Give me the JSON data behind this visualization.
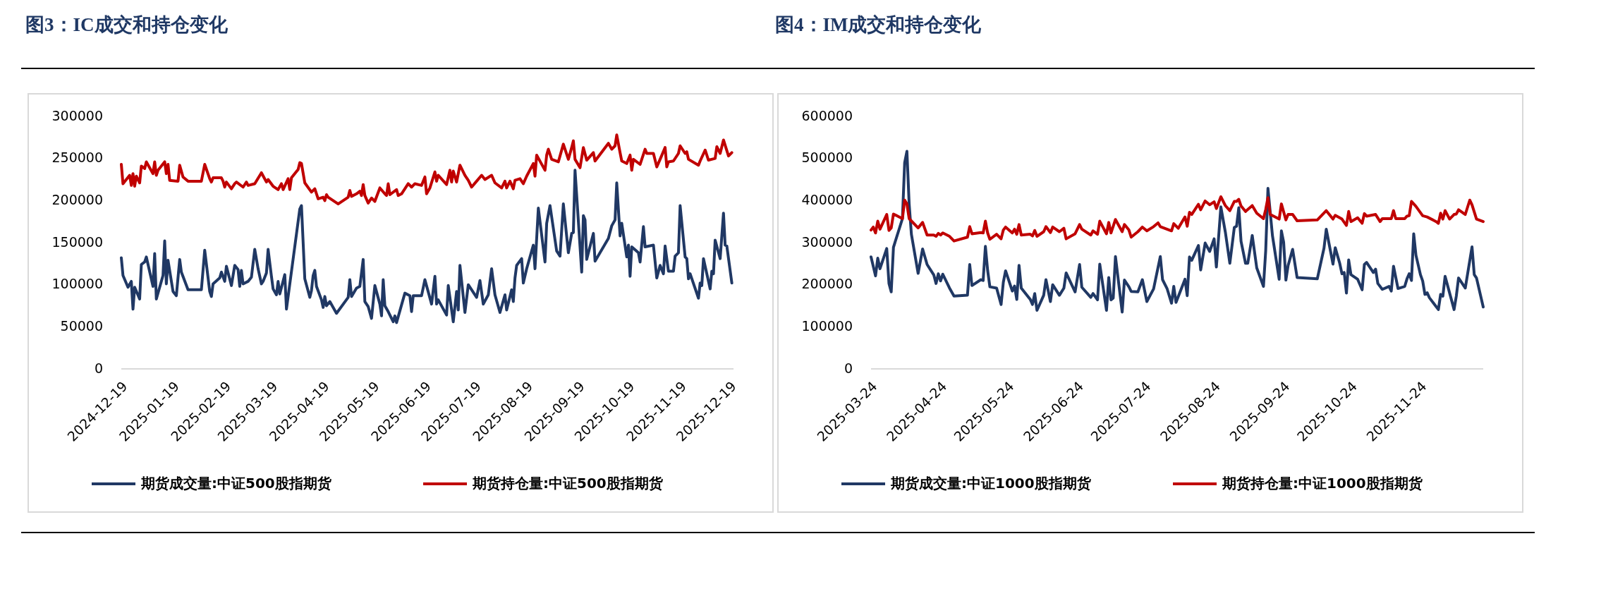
{
  "chart_data": [
    {
      "type": "line",
      "title": "图3：IC成交和持仓变化",
      "legend": "bottom",
      "ylim": [
        0,
        300000
      ],
      "yticks": [
        0,
        50000,
        100000,
        150000,
        200000,
        250000,
        300000
      ],
      "xlim": [
        "2024-12-19",
        "2025-12-21"
      ],
      "xticks": [
        "2024-12-19",
        "2025-01-19",
        "2025-02-19",
        "2025-03-19",
        "2025-04-19",
        "2025-05-19",
        "2025-06-19",
        "2025-07-19",
        "2025-08-19",
        "2025-09-19",
        "2025-10-19",
        "2025-11-19",
        "2025-12-19"
      ],
      "series": [
        {
          "name": "期货成交量:中证500股指期货",
          "color": "#203864",
          "x": [
            "2024-12-19",
            "2024-12-20",
            "2024-12-23",
            "2024-12-25",
            "2024-12-26",
            "2024-12-27",
            "2024-12-30",
            "2024-12-31",
            "2025-01-02",
            "2025-01-03",
            "2025-01-07",
            "2025-01-08",
            "2025-01-09",
            "2025-01-13",
            "2025-01-14",
            "2025-01-15",
            "2025-01-16",
            "2025-01-19",
            "2025-01-21",
            "2025-01-23",
            "2025-01-24",
            "2025-01-28",
            "2025-02-05",
            "2025-02-07",
            "2025-02-10",
            "2025-02-11",
            "2025-02-12",
            "2025-02-16",
            "2025-02-17",
            "2025-02-19",
            "2025-02-20",
            "2025-02-23",
            "2025-02-25",
            "2025-02-27",
            "2025-02-28",
            "2025-03-01",
            "2025-03-02",
            "2025-03-05",
            "2025-03-07",
            "2025-03-09",
            "2025-03-11",
            "2025-03-13",
            "2025-03-14",
            "2025-03-16",
            "2025-03-17",
            "2025-03-19",
            "2025-03-20",
            "2025-03-22",
            "2025-03-23",
            "2025-03-24",
            "2025-03-27",
            "2025-03-28",
            "2025-04-05",
            "2025-04-06",
            "2025-04-08",
            "2025-04-11",
            "2025-04-12",
            "2025-04-13",
            "2025-04-14",
            "2025-04-15",
            "2025-04-18",
            "2025-04-19",
            "2025-04-20",
            "2025-04-21",
            "2025-04-23",
            "2025-04-27",
            "2025-05-04",
            "2025-05-05",
            "2025-05-06",
            "2025-05-09",
            "2025-05-11",
            "2025-05-13",
            "2025-05-14",
            "2025-05-16",
            "2025-05-18",
            "2025-05-20",
            "2025-05-23",
            "2025-05-24",
            "2025-05-25",
            "2025-05-26",
            "2025-05-28",
            "2025-05-31",
            "2025-06-01",
            "2025-06-02",
            "2025-06-07",
            "2025-06-10",
            "2025-06-11",
            "2025-06-12",
            "2025-06-17",
            "2025-06-19",
            "2025-06-23",
            "2025-06-25",
            "2025-06-26",
            "2025-06-27",
            "2025-07-02",
            "2025-07-03",
            "2025-07-06",
            "2025-07-08",
            "2025-07-09",
            "2025-07-10",
            "2025-07-13",
            "2025-07-15",
            "2025-07-20",
            "2025-07-22",
            "2025-07-24",
            "2025-07-27",
            "2025-07-29",
            "2025-07-31",
            "2025-08-03",
            "2025-08-06",
            "2025-08-07",
            "2025-08-10",
            "2025-08-11",
            "2025-08-12",
            "2025-08-13",
            "2025-08-16",
            "2025-08-17",
            "2025-08-19",
            "2025-08-23",
            "2025-08-24",
            "2025-08-26",
            "2025-08-30",
            "2025-08-31",
            "2025-09-02",
            "2025-09-06",
            "2025-09-08",
            "2025-09-10",
            "2025-09-13",
            "2025-09-15",
            "2025-09-16",
            "2025-09-17",
            "2025-09-21",
            "2025-09-22",
            "2025-09-23",
            "2025-09-24",
            "2025-09-28",
            "2025-09-29",
            "2025-10-07",
            "2025-10-09",
            "2025-10-11",
            "2025-10-12",
            "2025-10-14",
            "2025-10-15",
            "2025-10-18",
            "2025-10-19",
            "2025-10-20",
            "2025-10-21",
            "2025-10-25",
            "2025-10-26",
            "2025-10-28",
            "2025-10-29",
            "2025-11-03",
            "2025-11-05",
            "2025-11-07",
            "2025-11-09",
            "2025-11-10",
            "2025-11-12",
            "2025-11-15",
            "2025-11-16",
            "2025-11-18",
            "2025-11-19",
            "2025-11-22",
            "2025-11-23",
            "2025-11-24",
            "2025-11-25",
            "2025-11-30",
            "2025-12-01",
            "2025-12-02",
            "2025-12-03",
            "2025-12-07",
            "2025-12-08",
            "2025-12-09",
            "2025-12-10",
            "2025-12-13",
            "2025-12-15",
            "2025-12-16",
            "2025-12-17",
            "2025-12-20"
          ],
          "values": [
            132000,
            111000,
            97000,
            104000,
            71000,
            97000,
            83000,
            124000,
            127000,
            133000,
            98000,
            137000,
            83000,
            111000,
            152000,
            101000,
            129000,
            92000,
            87000,
            130000,
            115000,
            94000,
            94000,
            141000,
            92000,
            86000,
            101000,
            108000,
            115000,
            104000,
            122000,
            99000,
            123000,
            118000,
            98000,
            117000,
            101000,
            104000,
            109000,
            142000,
            119000,
            101000,
            104000,
            114000,
            142000,
            110000,
            95000,
            88000,
            104000,
            89000,
            112000,
            71000,
            190000,
            194000,
            107000,
            85000,
            93000,
            111000,
            117000,
            98000,
            82000,
            73000,
            86000,
            75000,
            80000,
            66000,
            85000,
            106000,
            86000,
            96000,
            98000,
            130000,
            80000,
            74000,
            60000,
            99000,
            77000,
            63000,
            106000,
            75000,
            68000,
            56000,
            63000,
            55000,
            90000,
            87000,
            68000,
            87000,
            87000,
            106000,
            77000,
            110000,
            77000,
            82000,
            64000,
            99000,
            56000,
            92000,
            70000,
            123000,
            67000,
            100000,
            85000,
            105000,
            77000,
            88000,
            119000,
            88000,
            67000,
            88000,
            70000,
            94000,
            80000,
            108000,
            123000,
            131000,
            102000,
            119000,
            147000,
            119000,
            191000,
            127000,
            173000,
            194000,
            140000,
            134000,
            196000,
            138000,
            161000,
            162000,
            236000,
            115000,
            182000,
            177000,
            130000,
            161000,
            128000,
            155000,
            170000,
            177000,
            221000,
            158000,
            173000,
            133000,
            147000,
            110000,
            145000,
            138000,
            127000,
            169000,
            145000,
            147000,
            108000,
            123000,
            113000,
            146000,
            116000,
            116000,
            134000,
            138000,
            194000,
            133000,
            131000,
            107000,
            113000,
            84000,
            102000,
            99000,
            131000,
            95000,
            116000,
            113000,
            153000,
            131000,
            185000,
            147000,
            146000,
            102000
          ]
        },
        {
          "name": "期货持仓量:中证500股指期货",
          "color": "#c00000",
          "x": [
            "2024-12-19",
            "2024-12-20",
            "2024-12-22",
            "2024-12-24",
            "2024-12-25",
            "2024-12-26",
            "2024-12-27",
            "2024-12-28",
            "2024-12-30",
            "2024-12-31",
            "2025-01-02",
            "2025-01-03",
            "2025-01-07",
            "2025-01-08",
            "2025-01-09",
            "2025-01-10",
            "2025-01-14",
            "2025-01-15",
            "2025-01-16",
            "2025-01-17",
            "2025-01-22",
            "2025-01-23",
            "2025-01-25",
            "2025-01-28",
            "2025-02-05",
            "2025-02-07",
            "2025-02-10",
            "2025-02-11",
            "2025-02-12",
            "2025-02-17",
            "2025-02-18",
            "2025-02-19",
            "2025-02-20",
            "2025-02-23",
            "2025-02-25",
            "2025-02-26",
            "2025-03-02",
            "2025-03-04",
            "2025-03-05",
            "2025-03-09",
            "2025-03-13",
            "2025-03-16",
            "2025-03-17",
            "2025-03-20",
            "2025-03-23",
            "2025-03-25",
            "2025-03-26",
            "2025-03-29",
            "2025-03-30",
            "2025-03-31",
            "2025-04-04",
            "2025-04-05",
            "2025-04-06",
            "2025-04-08",
            "2025-04-12",
            "2025-04-14",
            "2025-04-16",
            "2025-04-19",
            "2025-04-20",
            "2025-04-21",
            "2025-04-22",
            "2025-04-28",
            "2025-05-04",
            "2025-05-05",
            "2025-05-06",
            "2025-05-09",
            "2025-05-11",
            "2025-05-12",
            "2025-05-13",
            "2025-05-14",
            "2025-05-16",
            "2025-05-18",
            "2025-05-20",
            "2025-05-23",
            "2025-05-26",
            "2025-05-27",
            "2025-05-28",
            "2025-05-29",
            "2025-06-02",
            "2025-06-03",
            "2025-06-05",
            "2025-06-09",
            "2025-06-11",
            "2025-06-13",
            "2025-06-17",
            "2025-06-19",
            "2025-06-20",
            "2025-06-22",
            "2025-06-25",
            "2025-06-26",
            "2025-06-27",
            "2025-07-02",
            "2025-07-04",
            "2025-07-05",
            "2025-07-06",
            "2025-07-08",
            "2025-07-10",
            "2025-07-13",
            "2025-07-15",
            "2025-07-17",
            "2025-07-20",
            "2025-07-23",
            "2025-07-25",
            "2025-07-29",
            "2025-07-31",
            "2025-08-04",
            "2025-08-06",
            "2025-08-07",
            "2025-08-09",
            "2025-08-11",
            "2025-08-12",
            "2025-08-15",
            "2025-08-17",
            "2025-08-19",
            "2025-08-23",
            "2025-08-24",
            "2025-08-25",
            "2025-08-30",
            "2025-08-31",
            "2025-09-01",
            "2025-09-03",
            "2025-09-07",
            "2025-09-10",
            "2025-09-13",
            "2025-09-15",
            "2025-09-16",
            "2025-09-17",
            "2025-09-20",
            "2025-09-22",
            "2025-09-24",
            "2025-09-28",
            "2025-09-29",
            "2025-10-07",
            "2025-10-09",
            "2025-10-11",
            "2025-10-12",
            "2025-10-14",
            "2025-10-15",
            "2025-10-18",
            "2025-10-20",
            "2025-10-21",
            "2025-10-22",
            "2025-10-26",
            "2025-10-29",
            "2025-10-30",
            "2025-11-03",
            "2025-11-05",
            "2025-11-07",
            "2025-11-10",
            "2025-11-11",
            "2025-11-12",
            "2025-11-15",
            "2025-11-18",
            "2025-11-19",
            "2025-11-22",
            "2025-11-23",
            "2025-11-24",
            "2025-11-30",
            "2025-12-01",
            "2025-12-04",
            "2025-12-06",
            "2025-12-10",
            "2025-12-11",
            "2025-12-13",
            "2025-12-15",
            "2025-12-18",
            "2025-12-20"
          ],
          "values": [
            243000,
            220000,
            225000,
            230000,
            218000,
            232000,
            217000,
            229000,
            221000,
            241000,
            238000,
            246000,
            232000,
            246000,
            230000,
            236000,
            246000,
            232000,
            243000,
            224000,
            223000,
            242000,
            228000,
            223000,
            223000,
            243000,
            226000,
            222000,
            227000,
            227000,
            223000,
            216000,
            222000,
            214000,
            220000,
            222000,
            216000,
            222000,
            218000,
            220000,
            233000,
            222000,
            225000,
            217000,
            213000,
            220000,
            213000,
            226000,
            213000,
            227000,
            237000,
            245000,
            244000,
            221000,
            210000,
            214000,
            202000,
            204000,
            200000,
            207000,
            204000,
            196000,
            204000,
            212000,
            205000,
            208000,
            211000,
            206000,
            219000,
            206000,
            197000,
            203000,
            199000,
            215000,
            208000,
            206000,
            220000,
            207000,
            213000,
            206000,
            208000,
            220000,
            216000,
            220000,
            218000,
            228000,
            208000,
            215000,
            234000,
            223000,
            230000,
            219000,
            236000,
            222000,
            235000,
            222000,
            242000,
            230000,
            224000,
            216000,
            223000,
            230000,
            225000,
            230000,
            221000,
            215000,
            223000,
            215000,
            223000,
            214000,
            224000,
            226000,
            220000,
            229000,
            244000,
            229000,
            254000,
            236000,
            254000,
            261000,
            249000,
            246000,
            267000,
            249000,
            263000,
            271000,
            249000,
            239000,
            263000,
            248000,
            257000,
            247000,
            268000,
            261000,
            265000,
            278000,
            257000,
            247000,
            244000,
            254000,
            236000,
            249000,
            243000,
            261000,
            256000,
            256000,
            240000,
            249000,
            263000,
            240000,
            246000,
            247000,
            256000,
            265000,
            256000,
            258000,
            249000,
            242000,
            247000,
            260000,
            248000,
            250000,
            264000,
            256000,
            272000,
            253000,
            257000
          ]
        }
      ]
    },
    {
      "type": "line",
      "title": "图4：IM成交和持仓变化",
      "legend": "bottom",
      "ylim": [
        0,
        600000
      ],
      "yticks": [
        0,
        100000,
        200000,
        300000,
        400000,
        500000,
        600000
      ],
      "xlim": [
        "2025-03-24",
        "2025-12-22"
      ],
      "xticks": [
        "2025-03-24",
        "2025-04-24",
        "2025-05-24",
        "2025-06-24",
        "2025-07-24",
        "2025-08-24",
        "2025-09-24",
        "2025-10-24",
        "2025-11-24"
      ],
      "series": [
        {
          "name": "期货成交量:中证1000股指期货",
          "color": "#203864",
          "x": [
            "2025-03-24",
            "2025-03-26",
            "2025-03-27",
            "2025-03-28",
            "2025-03-31",
            "2025-04-01",
            "2025-04-02",
            "2025-04-03",
            "2025-04-07",
            "2025-04-08",
            "2025-04-09",
            "2025-04-10",
            "2025-04-11",
            "2025-04-14",
            "2025-04-16",
            "2025-04-18",
            "2025-04-21",
            "2025-04-22",
            "2025-04-23",
            "2025-04-24",
            "2025-04-25",
            "2025-04-28",
            "2025-04-30",
            "2025-05-06",
            "2025-05-07",
            "2025-05-08",
            "2025-05-12",
            "2025-05-13",
            "2025-05-14",
            "2025-05-15",
            "2025-05-16",
            "2025-05-19",
            "2025-05-21",
            "2025-05-22",
            "2025-05-23",
            "2025-05-26",
            "2025-05-27",
            "2025-05-28",
            "2025-05-29",
            "2025-05-30",
            "2025-06-03",
            "2025-06-04",
            "2025-06-05",
            "2025-06-06",
            "2025-06-09",
            "2025-06-10",
            "2025-06-12",
            "2025-06-13",
            "2025-06-16",
            "2025-06-18",
            "2025-06-19",
            "2025-06-23",
            "2025-06-25",
            "2025-06-26",
            "2025-06-30",
            "2025-07-01",
            "2025-07-03",
            "2025-07-04",
            "2025-07-07",
            "2025-07-08",
            "2025-07-09",
            "2025-07-10",
            "2025-07-11",
            "2025-07-14",
            "2025-07-15",
            "2025-07-17",
            "2025-07-18",
            "2025-07-21",
            "2025-07-23",
            "2025-07-25",
            "2025-07-28",
            "2025-07-31",
            "2025-08-01",
            "2025-08-03",
            "2025-08-05",
            "2025-08-06",
            "2025-08-07",
            "2025-08-11",
            "2025-08-12",
            "2025-08-13",
            "2025-08-14",
            "2025-08-17",
            "2025-08-18",
            "2025-08-20",
            "2025-08-22",
            "2025-08-24",
            "2025-08-25",
            "2025-08-27",
            "2025-08-29",
            "2025-08-31",
            "2025-09-02",
            "2025-09-03",
            "2025-09-04",
            "2025-09-05",
            "2025-09-07",
            "2025-09-08",
            "2025-09-10",
            "2025-09-12",
            "2025-09-15",
            "2025-09-16",
            "2025-09-17",
            "2025-09-19",
            "2025-09-22",
            "2025-09-23",
            "2025-09-24",
            "2025-09-25",
            "2025-09-26",
            "2025-09-28",
            "2025-09-30",
            "2025-10-09",
            "2025-10-12",
            "2025-10-13",
            "2025-10-16",
            "2025-10-17",
            "2025-10-19",
            "2025-10-20",
            "2025-10-21",
            "2025-10-22",
            "2025-10-23",
            "2025-10-24",
            "2025-10-27",
            "2025-10-29",
            "2025-10-30",
            "2025-10-31",
            "2025-11-03",
            "2025-11-04",
            "2025-11-05",
            "2025-11-07",
            "2025-11-10",
            "2025-11-11",
            "2025-11-12",
            "2025-11-14",
            "2025-11-17",
            "2025-11-18",
            "2025-11-19",
            "2025-11-20",
            "2025-11-21",
            "2025-11-22",
            "2025-11-24",
            "2025-11-25",
            "2025-11-26",
            "2025-11-27",
            "2025-11-28",
            "2025-11-30",
            "2025-12-02",
            "2025-12-03",
            "2025-12-04",
            "2025-12-05",
            "2025-12-09",
            "2025-12-10",
            "2025-12-11",
            "2025-12-14",
            "2025-12-17",
            "2025-12-18",
            "2025-12-19",
            "2025-12-22"
          ],
          "values": [
            266000,
            221000,
            263000,
            238000,
            286000,
            203000,
            183000,
            289000,
            357000,
            490000,
            517000,
            392000,
            320000,
            227000,
            285000,
            248000,
            223000,
            203000,
            226000,
            209000,
            225000,
            192000,
            173000,
            175000,
            248000,
            198000,
            212000,
            210000,
            291000,
            234000,
            195000,
            192000,
            153000,
            206000,
            233000,
            185000,
            197000,
            165000,
            246000,
            192000,
            165000,
            153000,
            179000,
            139000,
            175000,
            212000,
            160000,
            200000,
            175000,
            192000,
            228000,
            183000,
            248000,
            194000,
            170000,
            179000,
            164000,
            249000,
            139000,
            217000,
            164000,
            168000,
            267000,
            135000,
            211000,
            195000,
            184000,
            183000,
            212000,
            160000,
            190000,
            267000,
            212000,
            191000,
            156000,
            196000,
            158000,
            213000,
            174000,
            266000,
            258000,
            293000,
            235000,
            299000,
            279000,
            309000,
            242000,
            385000,
            325000,
            251000,
            336000,
            339000,
            383000,
            303000,
            251000,
            251000,
            317000,
            240000,
            196000,
            281000,
            429000,
            317000,
            213000,
            328000,
            301000,
            211000,
            246000,
            284000,
            217000,
            214000,
            287000,
            332000,
            249000,
            288000,
            251000,
            226000,
            229000,
            180000,
            259000,
            224000,
            213000,
            188000,
            248000,
            253000,
            229000,
            237000,
            203000,
            189000,
            196000,
            185000,
            244000,
            191000,
            196000,
            214000,
            226000,
            210000,
            321000,
            270000,
            224000,
            209000,
            177000,
            181000,
            169000,
            155000,
            141000,
            177000,
            173000,
            220000,
            141000,
            173000,
            216000,
            192000,
            290000,
            224000,
            216000,
            147000
          ]
        },
        {
          "name": "期货持仓量:中证1000股指期货",
          "color": "#c00000",
          "x": [
            "2025-03-24",
            "2025-03-25",
            "2025-03-26",
            "2025-03-27",
            "2025-03-28",
            "2025-03-31",
            "2025-04-01",
            "2025-04-02",
            "2025-04-03",
            "2025-04-07",
            "2025-04-08",
            "2025-04-09",
            "2025-04-10",
            "2025-04-14",
            "2025-04-16",
            "2025-04-18",
            "2025-04-21",
            "2025-04-22",
            "2025-04-23",
            "2025-04-24",
            "2025-04-25",
            "2025-04-28",
            "2025-04-30",
            "2025-05-06",
            "2025-05-07",
            "2025-05-08",
            "2025-05-12",
            "2025-05-13",
            "2025-05-14",
            "2025-05-15",
            "2025-05-16",
            "2025-05-19",
            "2025-05-21",
            "2025-05-22",
            "2025-05-23",
            "2025-05-26",
            "2025-05-27",
            "2025-05-28",
            "2025-05-29",
            "2025-05-30",
            "2025-06-03",
            "2025-06-04",
            "2025-06-05",
            "2025-06-06",
            "2025-06-09",
            "2025-06-10",
            "2025-06-12",
            "2025-06-13",
            "2025-06-16",
            "2025-06-18",
            "2025-06-19",
            "2025-06-23",
            "2025-06-25",
            "2025-06-26",
            "2025-06-30",
            "2025-07-01",
            "2025-07-03",
            "2025-07-04",
            "2025-07-07",
            "2025-07-08",
            "2025-07-09",
            "2025-07-11",
            "2025-07-14",
            "2025-07-15",
            "2025-07-17",
            "2025-07-18",
            "2025-07-21",
            "2025-07-23",
            "2025-07-25",
            "2025-07-28",
            "2025-07-30",
            "2025-07-31",
            "2025-08-05",
            "2025-08-06",
            "2025-08-08",
            "2025-08-11",
            "2025-08-12",
            "2025-08-13",
            "2025-08-14",
            "2025-08-17",
            "2025-08-18",
            "2025-08-20",
            "2025-08-22",
            "2025-08-24",
            "2025-08-25",
            "2025-08-27",
            "2025-08-29",
            "2025-08-31",
            "2025-09-02",
            "2025-09-03",
            "2025-09-04",
            "2025-09-05",
            "2025-09-07",
            "2025-09-10",
            "2025-09-12",
            "2025-09-15",
            "2025-09-16",
            "2025-09-17",
            "2025-09-18",
            "2025-09-22",
            "2025-09-23",
            "2025-09-25",
            "2025-09-26",
            "2025-09-28",
            "2025-09-30",
            "2025-10-09",
            "2025-10-13",
            "2025-10-16",
            "2025-10-17",
            "2025-10-20",
            "2025-10-22",
            "2025-10-23",
            "2025-10-24",
            "2025-10-27",
            "2025-10-29",
            "2025-10-30",
            "2025-10-31",
            "2025-11-04",
            "2025-11-06",
            "2025-11-07",
            "2025-11-11",
            "2025-11-12",
            "2025-11-13",
            "2025-11-17",
            "2025-11-18",
            "2025-11-19",
            "2025-11-20",
            "2025-11-22",
            "2025-11-25",
            "2025-11-27",
            "2025-12-01",
            "2025-12-02",
            "2025-12-03",
            "2025-12-04",
            "2025-12-05",
            "2025-12-07",
            "2025-12-09",
            "2025-12-10",
            "2025-12-11",
            "2025-12-14",
            "2025-12-16",
            "2025-12-17",
            "2025-12-19",
            "2025-12-22"
          ],
          "values": [
            330000,
            337000,
            323000,
            351000,
            332000,
            367000,
            329000,
            335000,
            368000,
            357000,
            401000,
            392000,
            357000,
            335000,
            348000,
            318000,
            318000,
            315000,
            322000,
            318000,
            323000,
            315000,
            304000,
            313000,
            338000,
            321000,
            324000,
            323000,
            351000,
            323000,
            308000,
            320000,
            309000,
            330000,
            337000,
            323000,
            332000,
            320000,
            343000,
            318000,
            320000,
            316000,
            329000,
            315000,
            326000,
            338000,
            324000,
            337000,
            326000,
            334000,
            309000,
            321000,
            343000,
            332000,
            318000,
            328000,
            320000,
            351000,
            321000,
            348000,
            323000,
            355000,
            326000,
            343000,
            330000,
            313000,
            326000,
            337000,
            328000,
            338000,
            347000,
            338000,
            328000,
            345000,
            334000,
            361000,
            339000,
            372000,
            367000,
            391000,
            378000,
            399000,
            390000,
            397000,
            381000,
            409000,
            388000,
            376000,
            398000,
            398000,
            403000,
            387000,
            374000,
            388000,
            370000,
            357000,
            379000,
            407000,
            367000,
            356000,
            392000,
            354000,
            367000,
            367000,
            352000,
            354000,
            376000,
            356000,
            365000,
            356000,
            341000,
            374000,
            350000,
            359000,
            346000,
            369000,
            363000,
            367000,
            350000,
            357000,
            357000,
            376000,
            357000,
            357000,
            363000,
            364000,
            398000,
            386000,
            364000,
            361000,
            350000,
            346000,
            370000,
            356000,
            376000,
            356000,
            367000,
            368000,
            378000,
            367000,
            401000,
            390000,
            356000,
            350000
          ]
        }
      ]
    }
  ]
}
